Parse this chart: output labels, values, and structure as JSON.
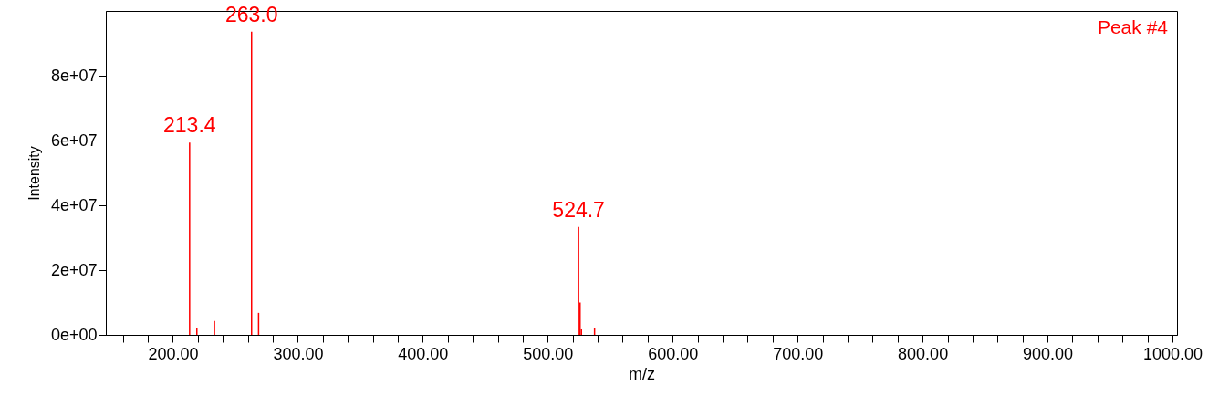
{
  "chart_data": {
    "type": "bar",
    "xlabel": "m/z",
    "ylabel": "Intensity",
    "x": [
      213.4,
      219.2,
      233.3,
      263.0,
      268.6,
      524.7,
      525.9,
      527.0,
      537.5
    ],
    "series": [
      {
        "color": "#ff0000",
        "values": [
          59400000,
          2000000,
          4300000,
          93600000,
          6800000,
          33300000,
          10000000,
          1700000,
          2000000
        ]
      }
    ],
    "xlim": [
      150,
      1000
    ],
    "ylim": [
      0,
      100000000
    ],
    "xticks": [
      {
        "value": 160,
        "label": null
      },
      {
        "value": 180,
        "label": null
      },
      {
        "value": 200,
        "label": "200.00"
      },
      {
        "value": 220,
        "label": null
      },
      {
        "value": 240,
        "label": null
      },
      {
        "value": 260,
        "label": null
      },
      {
        "value": 280,
        "label": null
      },
      {
        "value": 300,
        "label": "300.00"
      },
      {
        "value": 320,
        "label": null
      },
      {
        "value": 340,
        "label": null
      },
      {
        "value": 360,
        "label": null
      },
      {
        "value": 380,
        "label": null
      },
      {
        "value": 400,
        "label": "400.00"
      },
      {
        "value": 420,
        "label": null
      },
      {
        "value": 440,
        "label": null
      },
      {
        "value": 460,
        "label": null
      },
      {
        "value": 480,
        "label": null
      },
      {
        "value": 500,
        "label": "500.00"
      },
      {
        "value": 520,
        "label": null
      },
      {
        "value": 540,
        "label": null
      },
      {
        "value": 560,
        "label": null
      },
      {
        "value": 580,
        "label": null
      },
      {
        "value": 600,
        "label": "600.00"
      },
      {
        "value": 620,
        "label": null
      },
      {
        "value": 640,
        "label": null
      },
      {
        "value": 660,
        "label": null
      },
      {
        "value": 680,
        "label": null
      },
      {
        "value": 700,
        "label": "700.00"
      },
      {
        "value": 720,
        "label": null
      },
      {
        "value": 740,
        "label": null
      },
      {
        "value": 760,
        "label": null
      },
      {
        "value": 780,
        "label": null
      },
      {
        "value": 800,
        "label": "800.00"
      },
      {
        "value": 820,
        "label": null
      },
      {
        "value": 840,
        "label": null
      },
      {
        "value": 860,
        "label": null
      },
      {
        "value": 880,
        "label": null
      },
      {
        "value": 900,
        "label": "900.00"
      },
      {
        "value": 920,
        "label": null
      },
      {
        "value": 940,
        "label": null
      },
      {
        "value": 960,
        "label": null
      },
      {
        "value": 980,
        "label": null
      },
      {
        "value": 1000,
        "label": "1000.00"
      }
    ],
    "yticks": [
      {
        "value": 0,
        "label": "0e+00"
      },
      {
        "value": 20000000,
        "label": "2e+07"
      },
      {
        "value": 40000000,
        "label": "4e+07"
      },
      {
        "value": 60000000,
        "label": "6e+07"
      },
      {
        "value": 80000000,
        "label": "8e+07"
      }
    ],
    "annotations": [
      {
        "text": "213.4",
        "x": 213.4,
        "y": 59400000
      },
      {
        "text": "263.0",
        "x": 263.0,
        "y": 93600000
      },
      {
        "text": "524.7",
        "x": 524.7,
        "y": 33300000
      },
      "Peak #4"
    ],
    "grid": false
  }
}
